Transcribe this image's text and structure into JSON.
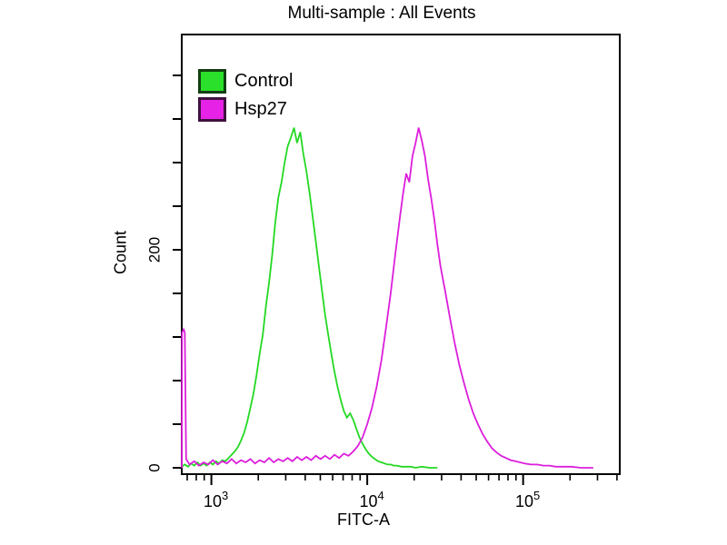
{
  "chart_data": {
    "type": "line",
    "chart_kind": "flow-cytometry-overlay-histogram",
    "title": "Multi-sample : All Events",
    "xlabel": "FITC-A",
    "ylabel": "Count",
    "x_scale": "log10",
    "xlim_log10": [
      2.81,
      5.62
    ],
    "ylim": [
      0,
      396
    ],
    "grid": false,
    "background": "#ffffff",
    "axis_color": "#000000",
    "text_color": "#000000",
    "legend": {
      "position": "top-left-inside",
      "items": [
        "Control",
        "Hsp27"
      ]
    },
    "x_major_ticks": [
      {
        "log10": 3,
        "base": "10",
        "exponent": "3"
      },
      {
        "log10": 4,
        "base": "10",
        "exponent": "4"
      },
      {
        "log10": 5,
        "base": "10",
        "exponent": "5"
      }
    ],
    "y_ticks": {
      "interval": 40,
      "max": 360,
      "labeled": [
        {
          "value": 0,
          "label": "0"
        },
        {
          "value": 200,
          "label": "200"
        }
      ]
    },
    "series": [
      {
        "name": "Control",
        "color": "#24d824",
        "swatch_fill": "#2be02b",
        "swatch_border": "#123f12",
        "points": [
          [
            2.81,
            1
          ],
          [
            2.83,
            3
          ],
          [
            2.85,
            1
          ],
          [
            2.87,
            4
          ],
          [
            2.89,
            2
          ],
          [
            2.91,
            5
          ],
          [
            2.93,
            2
          ],
          [
            2.95,
            4
          ],
          [
            2.97,
            2
          ],
          [
            2.99,
            5
          ],
          [
            3.01,
            3
          ],
          [
            3.03,
            6
          ],
          [
            3.05,
            4
          ],
          [
            3.07,
            7
          ],
          [
            3.09,
            6
          ],
          [
            3.11,
            9
          ],
          [
            3.13,
            12
          ],
          [
            3.15,
            15
          ],
          [
            3.17,
            19
          ],
          [
            3.19,
            25
          ],
          [
            3.21,
            32
          ],
          [
            3.23,
            42
          ],
          [
            3.25,
            55
          ],
          [
            3.27,
            68
          ],
          [
            3.29,
            85
          ],
          [
            3.31,
            105
          ],
          [
            3.33,
            122
          ],
          [
            3.35,
            148
          ],
          [
            3.37,
            170
          ],
          [
            3.39,
            195
          ],
          [
            3.41,
            225
          ],
          [
            3.43,
            248
          ],
          [
            3.45,
            262
          ],
          [
            3.47,
            280
          ],
          [
            3.49,
            295
          ],
          [
            3.51,
            303
          ],
          [
            3.53,
            312
          ],
          [
            3.55,
            298
          ],
          [
            3.57,
            308
          ],
          [
            3.59,
            288
          ],
          [
            3.61,
            272
          ],
          [
            3.63,
            252
          ],
          [
            3.65,
            230
          ],
          [
            3.67,
            208
          ],
          [
            3.69,
            185
          ],
          [
            3.71,
            162
          ],
          [
            3.73,
            140
          ],
          [
            3.75,
            122
          ],
          [
            3.77,
            104
          ],
          [
            3.79,
            88
          ],
          [
            3.81,
            74
          ],
          [
            3.83,
            62
          ],
          [
            3.85,
            52
          ],
          [
            3.87,
            46
          ],
          [
            3.89,
            50
          ],
          [
            3.91,
            44
          ],
          [
            3.93,
            36
          ],
          [
            3.95,
            28
          ],
          [
            3.97,
            22
          ],
          [
            3.99,
            17
          ],
          [
            4.01,
            13
          ],
          [
            4.03,
            10
          ],
          [
            4.05,
            8
          ],
          [
            4.07,
            6
          ],
          [
            4.09,
            5
          ],
          [
            4.11,
            4
          ],
          [
            4.13,
            3
          ],
          [
            4.15,
            3
          ],
          [
            4.17,
            2
          ],
          [
            4.19,
            2
          ],
          [
            4.22,
            1
          ],
          [
            4.25,
            1
          ],
          [
            4.28,
            1
          ],
          [
            4.31,
            0
          ],
          [
            4.35,
            1
          ],
          [
            4.4,
            0
          ],
          [
            4.45,
            0
          ]
        ]
      },
      {
        "name": "Hsp27",
        "color": "#dc1edc",
        "swatch_fill": "#e522e5",
        "swatch_border": "#3f123f",
        "points": [
          [
            2.81,
            0
          ],
          [
            2.812,
            124
          ],
          [
            2.822,
            127
          ],
          [
            2.83,
            124
          ],
          [
            2.838,
            8
          ],
          [
            2.86,
            3
          ],
          [
            2.89,
            6
          ],
          [
            2.92,
            2
          ],
          [
            2.95,
            5
          ],
          [
            2.98,
            3
          ],
          [
            3.01,
            7
          ],
          [
            3.04,
            3
          ],
          [
            3.07,
            6
          ],
          [
            3.1,
            4
          ],
          [
            3.13,
            8
          ],
          [
            3.16,
            4
          ],
          [
            3.19,
            7
          ],
          [
            3.22,
            5
          ],
          [
            3.25,
            8
          ],
          [
            3.28,
            4
          ],
          [
            3.31,
            7
          ],
          [
            3.34,
            5
          ],
          [
            3.37,
            9
          ],
          [
            3.4,
            5
          ],
          [
            3.43,
            8
          ],
          [
            3.46,
            6
          ],
          [
            3.49,
            9
          ],
          [
            3.52,
            6
          ],
          [
            3.55,
            10
          ],
          [
            3.58,
            7
          ],
          [
            3.61,
            10
          ],
          [
            3.64,
            7
          ],
          [
            3.67,
            11
          ],
          [
            3.7,
            8
          ],
          [
            3.73,
            11
          ],
          [
            3.76,
            8
          ],
          [
            3.79,
            12
          ],
          [
            3.82,
            9
          ],
          [
            3.85,
            13
          ],
          [
            3.88,
            11
          ],
          [
            3.91,
            15
          ],
          [
            3.94,
            20
          ],
          [
            3.97,
            28
          ],
          [
            4.0,
            40
          ],
          [
            4.03,
            55
          ],
          [
            4.06,
            74
          ],
          [
            4.09,
            98
          ],
          [
            4.12,
            128
          ],
          [
            4.15,
            160
          ],
          [
            4.18,
            196
          ],
          [
            4.21,
            230
          ],
          [
            4.23,
            252
          ],
          [
            4.25,
            270
          ],
          [
            4.27,
            262
          ],
          [
            4.29,
            286
          ],
          [
            4.31,
            298
          ],
          [
            4.33,
            312
          ],
          [
            4.35,
            300
          ],
          [
            4.37,
            286
          ],
          [
            4.39,
            265
          ],
          [
            4.41,
            248
          ],
          [
            4.43,
            228
          ],
          [
            4.45,
            205
          ],
          [
            4.47,
            185
          ],
          [
            4.5,
            162
          ],
          [
            4.53,
            138
          ],
          [
            4.56,
            115
          ],
          [
            4.59,
            95
          ],
          [
            4.62,
            78
          ],
          [
            4.65,
            63
          ],
          [
            4.68,
            50
          ],
          [
            4.71,
            40
          ],
          [
            4.74,
            31
          ],
          [
            4.77,
            24
          ],
          [
            4.8,
            18
          ],
          [
            4.83,
            14
          ],
          [
            4.86,
            11
          ],
          [
            4.89,
            9
          ],
          [
            4.92,
            7
          ],
          [
            4.95,
            6
          ],
          [
            4.98,
            5
          ],
          [
            5.01,
            4
          ],
          [
            5.05,
            3
          ],
          [
            5.09,
            3
          ],
          [
            5.13,
            2
          ],
          [
            5.17,
            2
          ],
          [
            5.21,
            1
          ],
          [
            5.26,
            1
          ],
          [
            5.31,
            1
          ],
          [
            5.37,
            0
          ],
          [
            5.45,
            0
          ]
        ]
      }
    ]
  }
}
